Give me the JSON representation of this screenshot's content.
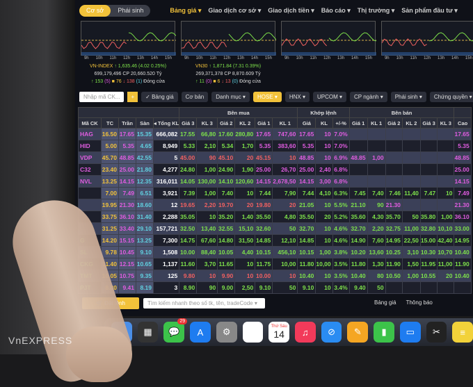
{
  "topbar": {
    "tabs": [
      "Cơ sở",
      "Phái sinh"
    ],
    "menu": [
      "Bảng giá ▾",
      "Giao dịch cơ sở ▾",
      "Giao dịch tiền ▾",
      "Báo cáo ▾",
      "Thị trường ▾",
      "Sản phẩm đầu tư ▾"
    ]
  },
  "chart_times": [
    "9h",
    "10h",
    "11h",
    "12h",
    "13h",
    "14h",
    "15h"
  ],
  "indices": [
    {
      "name": "VN-INDEX",
      "value": "↑ 1,635.46 (4.02 0.25%)",
      "volume": "699,179,496 CP",
      "vol_unit": "20,660.520 Tỷ",
      "up": "↑ 153",
      "up_c": "(5)",
      "ref": "■ 76",
      "down": "↓ 138",
      "down_f": "(1)",
      "status": "Đóng cửa"
    },
    {
      "name": "VN30",
      "value": "↑ 1,871.84 (7.31 0.39%)",
      "volume": "269,371,378 CP",
      "vol_unit": "8,870.609 Tỷ",
      "up": "↑ 11",
      "up_c": "(0)",
      "ref": "■ 6",
      "down": "↓ 13",
      "down_f": "(0)",
      "status": "Đóng cửa"
    }
  ],
  "toolbar": {
    "search_placeholder": "Nhập mã CK...",
    "add": "+",
    "view_price": "✓ Bảng giá",
    "view_basic": "Cơ bản",
    "buttons": [
      "Danh mục ▾",
      "HOSE ▾",
      "HNX ▾",
      "UPCOM ▾",
      "CP ngành ▾",
      "Phái sinh ▾",
      "Chứng quyền ▾"
    ],
    "active": "HOSE ▾"
  },
  "table": {
    "groups": {
      "buy": "Bên mua",
      "match": "Khớp lệnh",
      "sell": "Bên bán"
    },
    "headers": [
      "Mã CK",
      "TC",
      "Trần",
      "Sàn",
      "◂ Tổng KL",
      "Giá 3",
      "KL 3",
      "Giá 2",
      "KL 2",
      "Giá 1",
      "KL 1",
      "Giá",
      "KL",
      "+/-%",
      "Giá 1",
      "KL 1",
      "Giá 2",
      "KL 2",
      "Giá 3",
      "KL 3",
      "Cao"
    ],
    "rows": [
      [
        "HAG",
        "16.50",
        "17.65",
        "15.35",
        "666,082",
        "17.55",
        "66,80",
        "17.60",
        "280,80",
        "17.65",
        "747,60",
        "17.65",
        "10",
        "7.0%",
        "",
        "",
        "",
        "",
        "",
        "",
        "17.65"
      ],
      [
        "HID",
        "5.00",
        "5.35",
        "4.65",
        "8,949",
        "5.33",
        "2,10",
        "5.34",
        "1,70",
        "5.35",
        "383,60",
        "5.35",
        "10",
        "7.0%",
        "",
        "",
        "",
        "",
        "",
        "",
        "5.35"
      ],
      [
        "VDP",
        "45.70",
        "48.85",
        "42.55",
        "5",
        "45.00",
        "90",
        "45.10",
        "20",
        "45.15",
        "10",
        "48.85",
        "10",
        "6.9%",
        "48.85",
        "1,00",
        "",
        "",
        "",
        "",
        "48.85"
      ],
      [
        "C32",
        "23.40",
        "25.00",
        "21.80",
        "4,277",
        "24.80",
        "1,00",
        "24.90",
        "1,90",
        "25.00",
        "26,70",
        "25.00",
        "2,40",
        "6.8%",
        "",
        "",
        "",
        "",
        "",
        "",
        "25.00"
      ],
      [
        "NVL",
        "13.25",
        "14.15",
        "12.35",
        "316,011",
        "14.05",
        "130,00",
        "14.10",
        "120,60",
        "14.15",
        "2,678,50",
        "14.15",
        "3,00",
        "6.8%",
        "",
        "",
        "",
        "",
        "",
        "",
        "14.15"
      ],
      [
        "",
        "7.00",
        "7.49",
        "6.51",
        "3,921",
        "7.39",
        "1,00",
        "7.40",
        "10",
        "7.44",
        "7,90",
        "7.44",
        "4,10",
        "6.3%",
        "7.45",
        "7,40",
        "7.46",
        "11,40",
        "7.47",
        "10",
        "7.49"
      ],
      [
        "",
        "19.95",
        "21.30",
        "18.60",
        "12",
        "19.65",
        "2,20",
        "19.70",
        "20",
        "19.80",
        "20",
        "21.05",
        "10",
        "5.5%",
        "21.10",
        "90",
        "21.30",
        "",
        "",
        "",
        "21.30"
      ],
      [
        "",
        "33.75",
        "36.10",
        "31.40",
        "2,288",
        "35.05",
        "10",
        "35.20",
        "1,40",
        "35.50",
        "4,80",
        "35.50",
        "20",
        "5.2%",
        "35.60",
        "4,30",
        "35.70",
        "50",
        "35.80",
        "1,00",
        "36.10"
      ],
      [
        "",
        "31.25",
        "33.40",
        "29.10",
        "157,721",
        "32.50",
        "13,40",
        "32.55",
        "15,10",
        "32.60",
        "50",
        "32.70",
        "10",
        "4.6%",
        "32.70",
        "2,20",
        "32.75",
        "11,00",
        "32.80",
        "10,10",
        "33.00"
      ],
      [
        "G",
        "14.20",
        "15.15",
        "13.25",
        "7,300",
        "14.75",
        "67,60",
        "14.80",
        "31,50",
        "14.85",
        "12,10",
        "14.85",
        "10",
        "4.6%",
        "14.90",
        "7,60",
        "14.95",
        "22,50",
        "15.00",
        "42,40",
        "14.95"
      ],
      [
        "SL",
        "9.78",
        "10.45",
        "9.10",
        "1,508",
        "10.00",
        "88,40",
        "10.05",
        "4,40",
        "10.15",
        "456,10",
        "10.15",
        "1,00",
        "3.8%",
        "10.20",
        "13,60",
        "10.25",
        "3,10",
        "10.30",
        "10,70",
        "10.40"
      ],
      [
        "CKG",
        "11.40",
        "12.15",
        "10.65",
        "1,137",
        "11.60",
        "3,70",
        "11.65",
        "10",
        "11.75",
        "10,00",
        "11.80",
        "10,00",
        "3.5%",
        "11.80",
        "1,30",
        "11.90",
        "1,50",
        "11.95",
        "11,00",
        "11.90"
      ],
      [
        "TMT",
        "10.05",
        "10.75",
        "9.35",
        "125",
        "9.80",
        "10",
        "9.90",
        "10",
        "10.00",
        "10",
        "10.40",
        "10",
        "3.5%",
        "10.40",
        "80",
        "10.50",
        "1,00",
        "10.55",
        "20",
        "10.40"
      ],
      [
        "PJT",
        "8.80",
        "9.41",
        "8.19",
        "3",
        "8.90",
        "90",
        "9.00",
        "2,50",
        "9.10",
        "50",
        "9.10",
        "10",
        "3.4%",
        "9.40",
        "50",
        "",
        "",
        "",
        "",
        ""
      ]
    ]
  },
  "bottom": {
    "order": "🛒 Đặt lệnh",
    "search_placeholder": "Tìm kiếm nhanh theo số tk, tên, tradeCode ▾",
    "tabs": [
      "Bảng giá",
      "Thông báo"
    ]
  },
  "dock": {
    "messages_badge": "29",
    "calendar_day": "Thứ Sáu",
    "calendar_date": "14"
  },
  "watermark": "VnExpress",
  "colors": {
    "ceiling": "#e05ce0",
    "reference": "#f2c23a",
    "floor": "#60d0e0",
    "up": "#7de04a",
    "down": "#f06060",
    "accent": "#f2c23a"
  }
}
